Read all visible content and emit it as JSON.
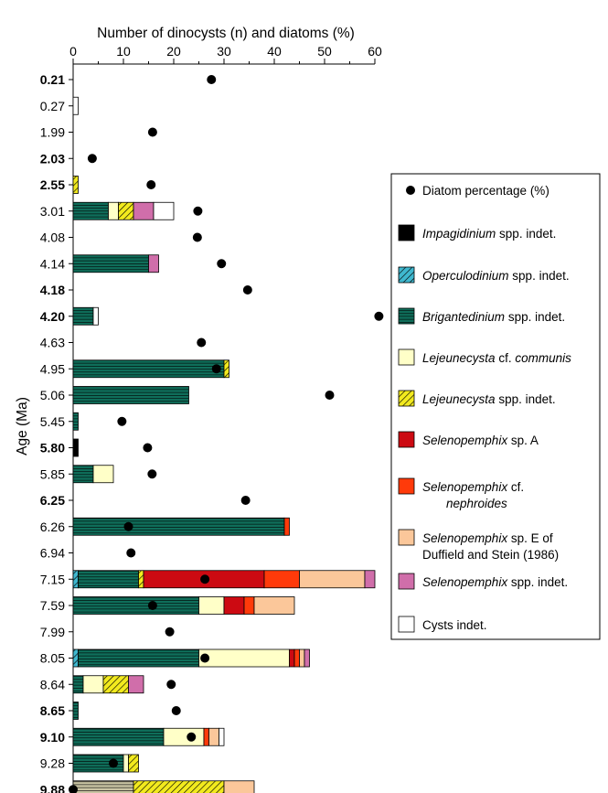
{
  "chart_data": {
    "type": "bar",
    "orientation": "horizontal",
    "stacked": true,
    "title": "Number of dinocysts (n) and diatoms (%)",
    "ylabel": "Age (Ma)",
    "xlim": [
      0,
      60
    ],
    "xticks": [
      0,
      10,
      20,
      30,
      40,
      50,
      60
    ],
    "grid": false,
    "legend_position": "right",
    "categories": [
      "0.21",
      "0.27",
      "1.99",
      "2.03",
      "2.55",
      "3.01",
      "4.08",
      "4.14",
      "4.18",
      "4.20",
      "4.63",
      "4.95",
      "5.06",
      "5.45",
      "5.80",
      "5.85",
      "6.25",
      "6.26",
      "6.94",
      "7.15",
      "7.59",
      "7.99",
      "8.05",
      "8.64",
      "8.65",
      "9.10",
      "9.28",
      "9.88"
    ],
    "bold_categories": [
      "0.21",
      "2.03",
      "2.55",
      "4.18",
      "4.20",
      "5.80",
      "6.25",
      "8.65",
      "9.10",
      "9.88"
    ],
    "series": [
      {
        "name": "Impagidinium spp. indet.",
        "color": "#000000",
        "pattern": "solid",
        "values": [
          0,
          0,
          0,
          0,
          0,
          0,
          0,
          0,
          0,
          0,
          0,
          0,
          0,
          0,
          1,
          0,
          0,
          0,
          0,
          0,
          0,
          0,
          0,
          0,
          0,
          0,
          0,
          0
        ]
      },
      {
        "name": "Operculodinium spp. indet.",
        "color": "#3fb8cf",
        "pattern": "diagonal",
        "values": [
          0,
          0,
          0,
          0,
          0,
          0,
          0,
          0,
          0,
          0,
          0,
          0,
          0,
          0,
          0,
          0,
          0,
          0,
          0,
          1,
          0,
          0,
          1,
          0,
          0,
          0,
          0,
          0
        ]
      },
      {
        "name": "Brigantedinium spp. indet.",
        "color": "#0f6e5a",
        "pattern": "horizontal",
        "values": [
          0,
          0,
          0,
          0,
          0,
          7,
          0,
          15,
          0,
          4,
          0,
          30,
          23,
          1,
          0,
          4,
          0,
          42,
          0,
          12,
          25,
          0,
          24,
          2,
          1,
          18,
          10,
          12
        ]
      },
      {
        "name": "Lejeunecysta cf. communis",
        "color": "#ffffc8",
        "pattern": "solid",
        "values": [
          0,
          0,
          0,
          0,
          0,
          2,
          0,
          0,
          0,
          0,
          0,
          0,
          0,
          0,
          0,
          4,
          0,
          0,
          0,
          0,
          5,
          0,
          18,
          4,
          0,
          8,
          1,
          0
        ]
      },
      {
        "name": "Lejeunecysta spp. indet.",
        "color": "#f2ea1e",
        "pattern": "diagonal",
        "values": [
          0,
          0,
          0,
          0,
          1,
          3,
          0,
          0,
          0,
          0,
          0,
          1,
          0,
          0,
          0,
          0,
          0,
          0,
          0,
          1,
          0,
          0,
          0,
          5,
          0,
          0,
          2,
          18
        ]
      },
      {
        "name": "Selenopemphix sp. A",
        "color": "#cc0a12",
        "pattern": "solid",
        "values": [
          0,
          0,
          0,
          0,
          0,
          0,
          0,
          0,
          0,
          0,
          0,
          0,
          0,
          0,
          0,
          0,
          0,
          0,
          0,
          24,
          4,
          0,
          1,
          0,
          0,
          0,
          0,
          0
        ]
      },
      {
        "name": "Selenopemphix cf. nephroides",
        "color": "#ff3a0a",
        "pattern": "solid",
        "values": [
          0,
          0,
          0,
          0,
          0,
          0,
          0,
          0,
          0,
          0,
          0,
          0,
          0,
          0,
          0,
          0,
          0,
          1,
          0,
          7,
          2,
          0,
          1,
          0,
          0,
          1,
          0,
          0
        ]
      },
      {
        "name": "Selenopemphix sp. E of Duffield and Stein (1986)",
        "color": "#fbc79a",
        "pattern": "solid",
        "values": [
          0,
          0,
          0,
          0,
          0,
          0,
          0,
          0,
          0,
          0,
          0,
          0,
          0,
          0,
          0,
          0,
          0,
          0,
          0,
          13,
          8,
          0,
          1,
          0,
          0,
          2,
          0,
          6
        ]
      },
      {
        "name": "Selenopemphix spp. indet.",
        "color": "#d06eaa",
        "pattern": "solid",
        "values": [
          0,
          0,
          0,
          0,
          0,
          4,
          0,
          2,
          0,
          0,
          0,
          0,
          0,
          0,
          0,
          0,
          0,
          0,
          0,
          2,
          0,
          0,
          1,
          3,
          0,
          0,
          0,
          0
        ]
      },
      {
        "name": "Cysts indet.",
        "color": "#ffffff",
        "pattern": "solid",
        "values": [
          0,
          1,
          0,
          0,
          0,
          4,
          0,
          0,
          0,
          1,
          0,
          0,
          0,
          0,
          0,
          0,
          0,
          0,
          0,
          0,
          0,
          0,
          0,
          0,
          0,
          1,
          0,
          0
        ]
      }
    ],
    "diatom_series": {
      "name": "Diatom percentage (%)",
      "values": [
        27.5,
        null,
        15.8,
        3.8,
        15.5,
        24.8,
        24.7,
        29.5,
        34.7,
        60.8,
        25.5,
        28.5,
        51,
        9.7,
        14.8,
        15.7,
        34.3,
        11,
        11.5,
        26.2,
        15.8,
        19.2,
        26.2,
        19.5,
        20.5,
        23.5,
        8,
        0
      ]
    },
    "legend_entries": [
      {
        "key": "diatom",
        "parts": [
          {
            "t": "Diatom percentage (%)",
            "i": false
          }
        ]
      },
      {
        "key": "s0",
        "parts": [
          {
            "t": "Impagidinium",
            "i": true
          },
          {
            "t": " spp. indet.",
            "i": false
          }
        ]
      },
      {
        "key": "s1",
        "parts": [
          {
            "t": "Operculodinium",
            "i": true
          },
          {
            "t": " spp. indet.",
            "i": false
          }
        ]
      },
      {
        "key": "s2",
        "parts": [
          {
            "t": "Brigantedinium",
            "i": true
          },
          {
            "t": "  spp. indet.",
            "i": false
          }
        ]
      },
      {
        "key": "s3",
        "parts": [
          {
            "t": "Lejeunecysta",
            "i": true
          },
          {
            "t": " cf. ",
            "i": false
          },
          {
            "t": "communis",
            "i": true
          }
        ]
      },
      {
        "key": "s4",
        "parts": [
          {
            "t": "Lejeunecysta",
            "i": true
          },
          {
            "t": "  spp. indet.",
            "i": false
          }
        ]
      },
      {
        "key": "s5",
        "parts": [
          {
            "t": "Selenopemphix",
            "i": true
          },
          {
            "t": "  sp. A",
            "i": false
          }
        ]
      },
      {
        "key": "s6",
        "parts": [
          {
            "t": "Selenopemphix",
            "i": true
          },
          {
            "t": "  cf.",
            "i": false
          }
        ],
        "line2": [
          {
            "t": "nephroides",
            "i": true
          }
        ]
      },
      {
        "key": "s7",
        "parts": [
          {
            "t": "Selenopemphix",
            "i": true
          },
          {
            "t": "  sp. E of",
            "i": false
          }
        ],
        "line2": [
          {
            "t": "Duffield and Stein (1986)",
            "i": false
          }
        ]
      },
      {
        "key": "s8",
        "parts": [
          {
            "t": "Selenopemphix",
            "i": true
          },
          {
            "t": "  spp. indet.",
            "i": false
          }
        ]
      },
      {
        "key": "s9",
        "parts": [
          {
            "t": "Cysts indet.",
            "i": false
          }
        ]
      }
    ]
  }
}
